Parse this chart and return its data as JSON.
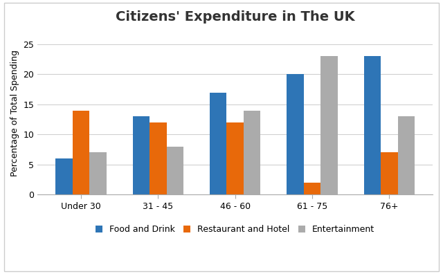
{
  "title": "Citizens' Expenditure in The UK",
  "ylabel": "Percentage of Total Spending",
  "categories": [
    "Under 30",
    "31 - 45",
    "46 - 60",
    "61 - 75",
    "76+"
  ],
  "series": {
    "Food and Drink": [
      6,
      13,
      17,
      20,
      23
    ],
    "Restaurant and Hotel": [
      14,
      12,
      12,
      2,
      7
    ],
    "Entertainment": [
      7,
      8,
      14,
      23,
      13
    ]
  },
  "colors": {
    "Food and Drink": "#2E75B6",
    "Restaurant and Hotel": "#E8690A",
    "Entertainment": "#ABABAB"
  },
  "ylim": [
    0,
    27
  ],
  "yticks": [
    0,
    5,
    10,
    15,
    20,
    25
  ],
  "bar_width": 0.22,
  "background_color": "#FFFFFF",
  "plot_bg_color": "#FFFFFF",
  "grid_color": "#D0D0D0",
  "border_color": "#CCCCCC",
  "title_fontsize": 14,
  "axis_label_fontsize": 9,
  "tick_fontsize": 9,
  "legend_fontsize": 9
}
